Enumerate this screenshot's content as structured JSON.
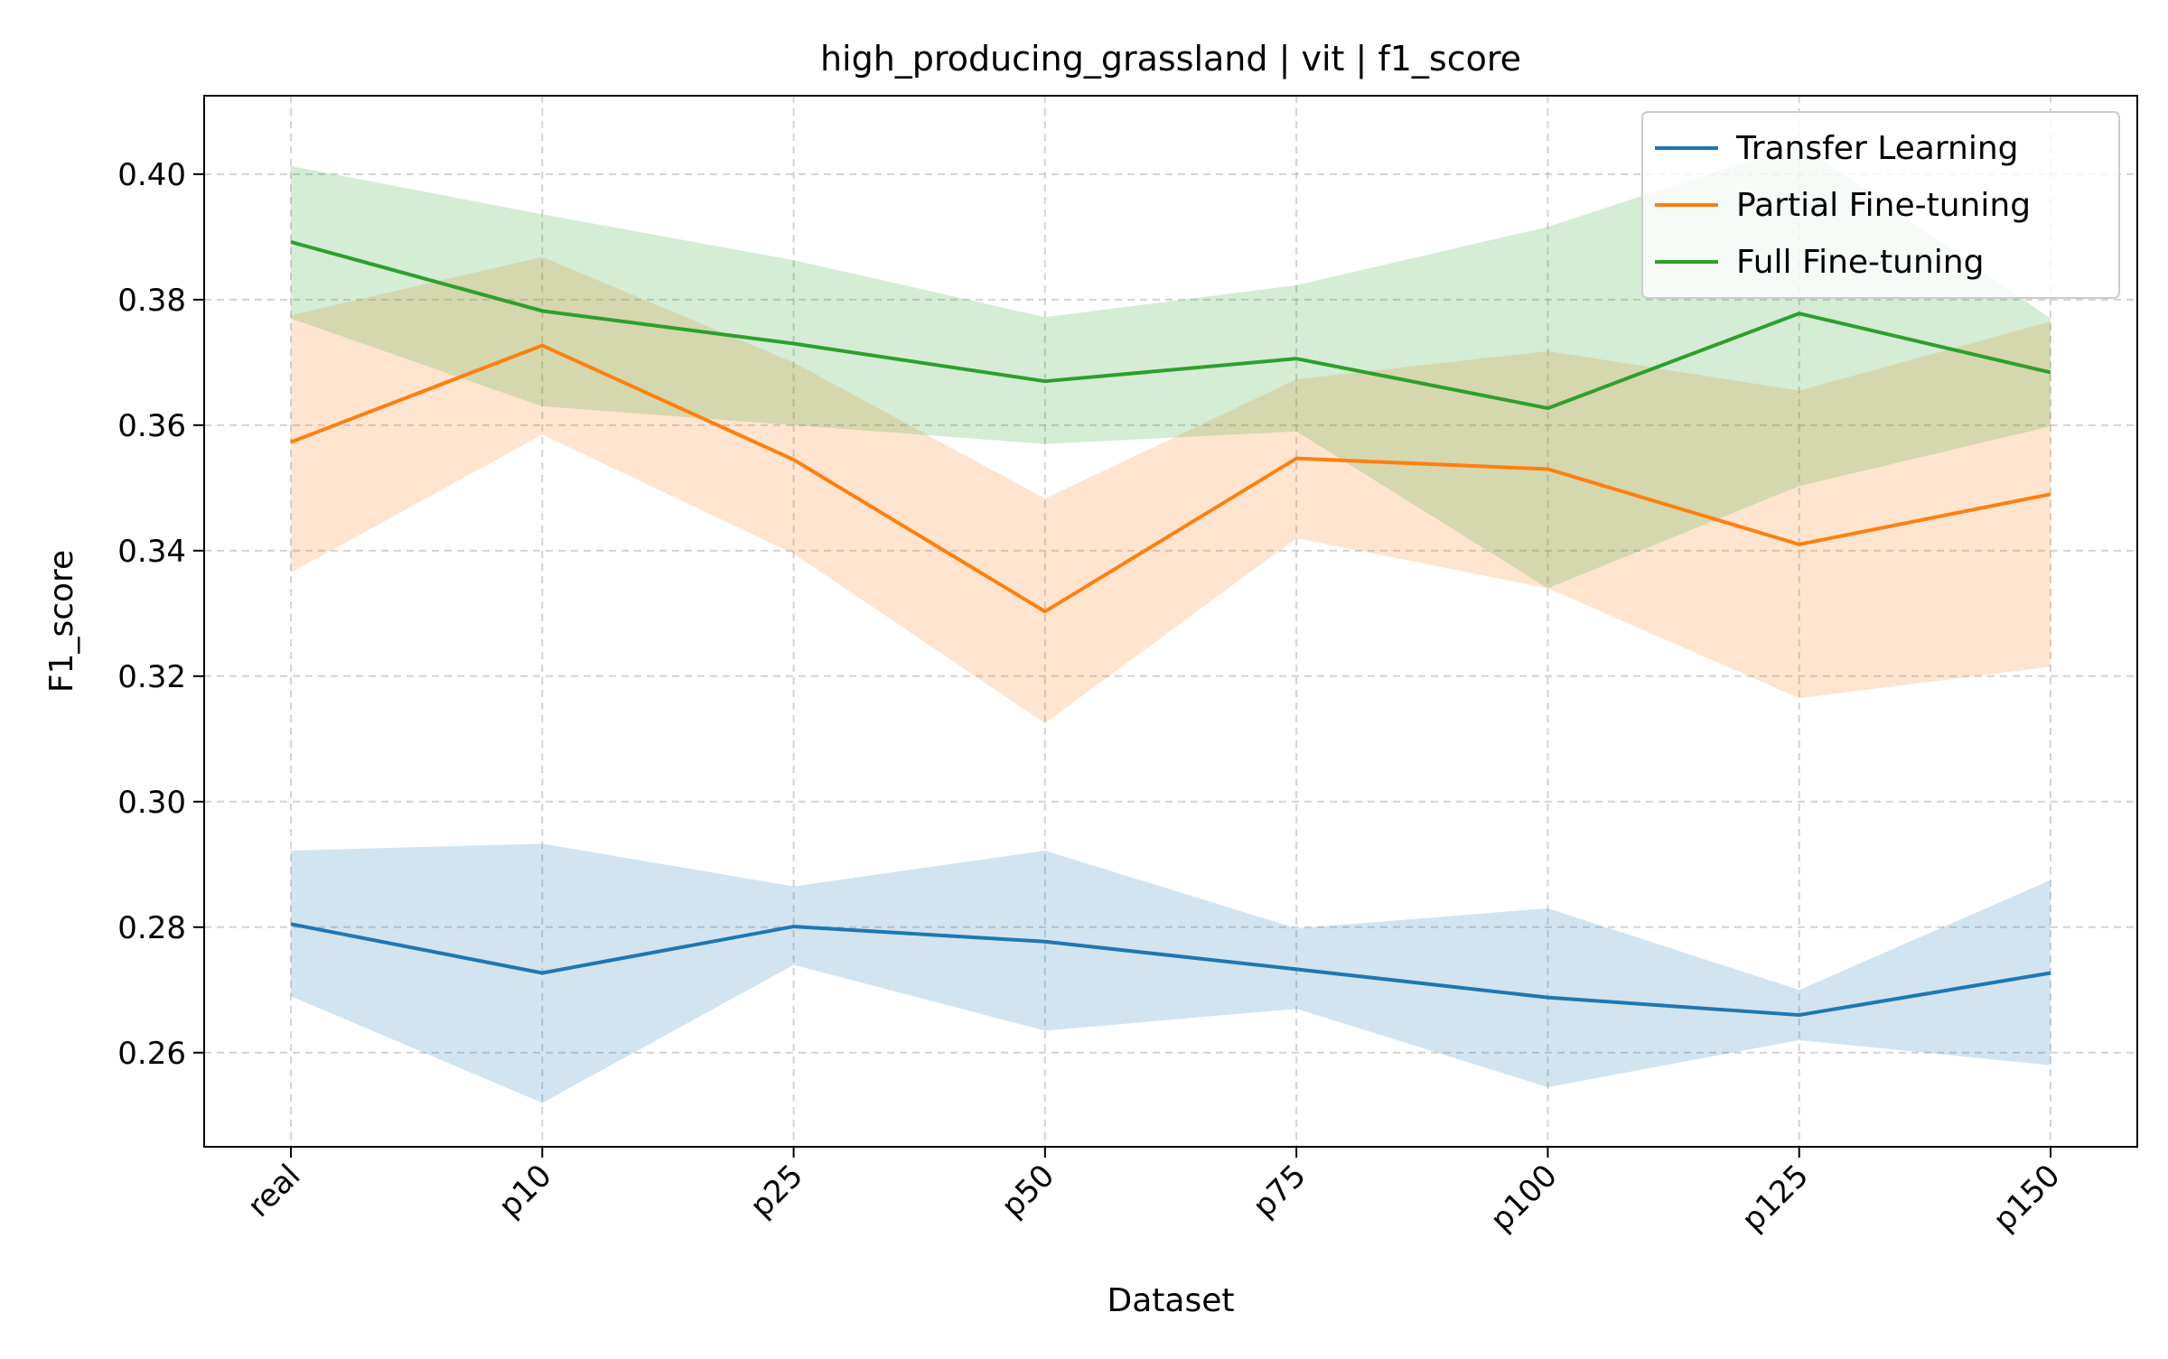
{
  "chart_data": {
    "type": "line",
    "title": "high_producing_grassland | vit | f1_score",
    "xlabel": "Dataset",
    "ylabel": "F1_score",
    "categories": [
      "real",
      "p10",
      "p25",
      "p50",
      "p75",
      "p100",
      "p125",
      "p150"
    ],
    "ylim": [
      0.245,
      0.4125
    ],
    "yticks": [
      "0.26",
      "0.28",
      "0.30",
      "0.32",
      "0.34",
      "0.36",
      "0.38",
      "0.40"
    ],
    "grid": true,
    "legend_position": "top-right",
    "series": [
      {
        "name": "Transfer Learning",
        "color": "#1f77b4",
        "values": [
          0.2805,
          0.2727,
          0.2801,
          0.2777,
          0.2733,
          0.2688,
          0.266,
          0.2727
        ],
        "lower": [
          0.269,
          0.252,
          0.274,
          0.2635,
          0.267,
          0.2545,
          0.262,
          0.258
        ],
        "upper": [
          0.2922,
          0.2933,
          0.2865,
          0.2922,
          0.2798,
          0.283,
          0.27,
          0.2875
        ]
      },
      {
        "name": "Partial Fine-tuning",
        "color": "#ff7f0e",
        "values": [
          0.3573,
          0.3727,
          0.3545,
          0.3303,
          0.3547,
          0.353,
          0.341,
          0.349
        ],
        "lower": [
          0.3365,
          0.3585,
          0.3395,
          0.3125,
          0.342,
          0.334,
          0.3165,
          0.3215
        ],
        "upper": [
          0.3775,
          0.3868,
          0.37,
          0.3483,
          0.3673,
          0.3718,
          0.3655,
          0.3765
        ]
      },
      {
        "name": "Full Fine-tuning",
        "color": "#2ca02c",
        "values": [
          0.3892,
          0.3782,
          0.373,
          0.367,
          0.3706,
          0.3627,
          0.3778,
          0.3684
        ],
        "lower": [
          0.377,
          0.363,
          0.36,
          0.357,
          0.359,
          0.334,
          0.3503,
          0.3598
        ],
        "upper": [
          0.4013,
          0.3936,
          0.3863,
          0.3772,
          0.3823,
          0.3916,
          0.4048,
          0.377
        ]
      }
    ]
  }
}
